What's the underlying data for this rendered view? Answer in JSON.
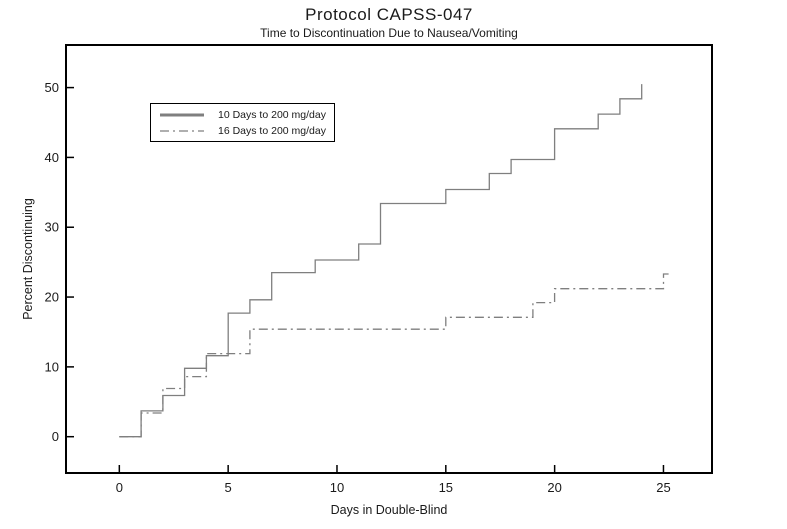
{
  "chart_data": {
    "type": "line",
    "subtype": "kaplan-meier-step",
    "title": "Protocol CAPSS-047",
    "subtitle": "Time to Discontinuation Due to Nausea/Vomiting",
    "xlabel": "Days in Double-Blind",
    "ylabel": "Percent Discontinuing",
    "xlim": [
      -2.45,
      27.23
    ],
    "ylim": [
      -5.2,
      56.1
    ],
    "xticks": [
      0,
      5,
      10,
      15,
      20,
      25
    ],
    "yticks": [
      0,
      10,
      20,
      30,
      40,
      50
    ],
    "grid": false,
    "legend_position": "upper-left-inside",
    "frame_color": "#000000",
    "line_color": "#7f7f7f",
    "series": [
      {
        "name": "10 Days to 200 mg/day",
        "style": "solid",
        "step_points": [
          [
            0,
            0
          ],
          [
            1,
            3.7
          ],
          [
            2,
            5.9
          ],
          [
            3,
            9.8
          ],
          [
            4,
            11.6
          ],
          [
            5,
            17.7
          ],
          [
            6,
            19.6
          ],
          [
            7,
            23.5
          ],
          [
            9,
            25.3
          ],
          [
            11,
            27.6
          ],
          [
            12,
            33.4
          ],
          [
            15,
            35.4
          ],
          [
            17,
            37.7
          ],
          [
            18,
            39.7
          ],
          [
            20,
            44.1
          ],
          [
            22,
            46.2
          ],
          [
            23,
            48.4
          ],
          [
            24,
            50.5
          ]
        ],
        "end_x": 24
      },
      {
        "name": "16 Days to 200 mg/day",
        "style": "dash-dot",
        "step_points": [
          [
            0,
            0
          ],
          [
            1,
            3.4
          ],
          [
            2,
            6.9
          ],
          [
            3,
            8.6
          ],
          [
            4,
            11.9
          ],
          [
            6,
            15.4
          ],
          [
            15,
            17.1
          ],
          [
            19,
            19.2
          ],
          [
            20,
            21.2
          ],
          [
            25,
            23.3
          ]
        ],
        "end_x": 25.3
      }
    ]
  }
}
